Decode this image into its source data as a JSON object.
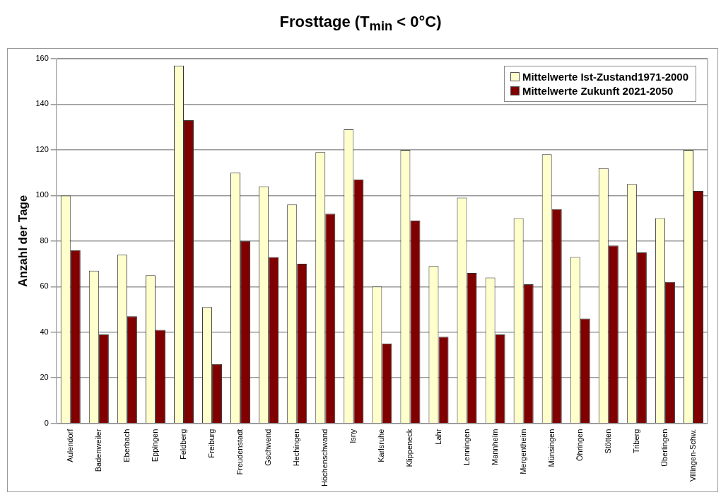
{
  "chart_data": {
    "type": "bar",
    "title": "Frosttage (T$_{min}$ <  0°C)",
    "ylabel": "Anzahl der Tage",
    "categories": [
      "Aulendorf",
      "Badenweiler",
      "Eberbach",
      "Eppingen",
      "Feldberg",
      "Freiburg",
      "Freudenstadt",
      "Gschwend",
      "Hechingen",
      "Höchenschwand",
      "Isny",
      "Karlsruhe",
      "Klippeneck",
      "Lahr",
      "Lenningen",
      "Mannheim",
      "Mergentheim",
      "Münsingen",
      "Öhringen",
      "Stötten",
      "Triberg",
      "Überlingen",
      "Villingen-Schw."
    ],
    "series": [
      {
        "name": "Mittelwerte Ist-Zustand1971-2000",
        "color": "#ffffcc",
        "values": [
          100,
          67,
          74,
          65,
          157,
          51,
          110,
          104,
          96,
          119,
          129,
          60,
          120,
          69,
          99,
          64,
          90,
          118,
          73,
          112,
          105,
          90,
          120
        ]
      },
      {
        "name": "Mittelwerte Zukunft 2021-2050",
        "color": "#800000",
        "values": [
          76,
          39,
          47,
          41,
          133,
          26,
          80,
          73,
          70,
          92,
          107,
          35,
          89,
          38,
          66,
          39,
          61,
          94,
          46,
          78,
          75,
          62,
          102
        ]
      }
    ],
    "ylim": [
      0,
      160
    ],
    "yticks": [
      0,
      20,
      40,
      60,
      80,
      100,
      120,
      140,
      160
    ],
    "grid": "y",
    "legend": "top right"
  }
}
